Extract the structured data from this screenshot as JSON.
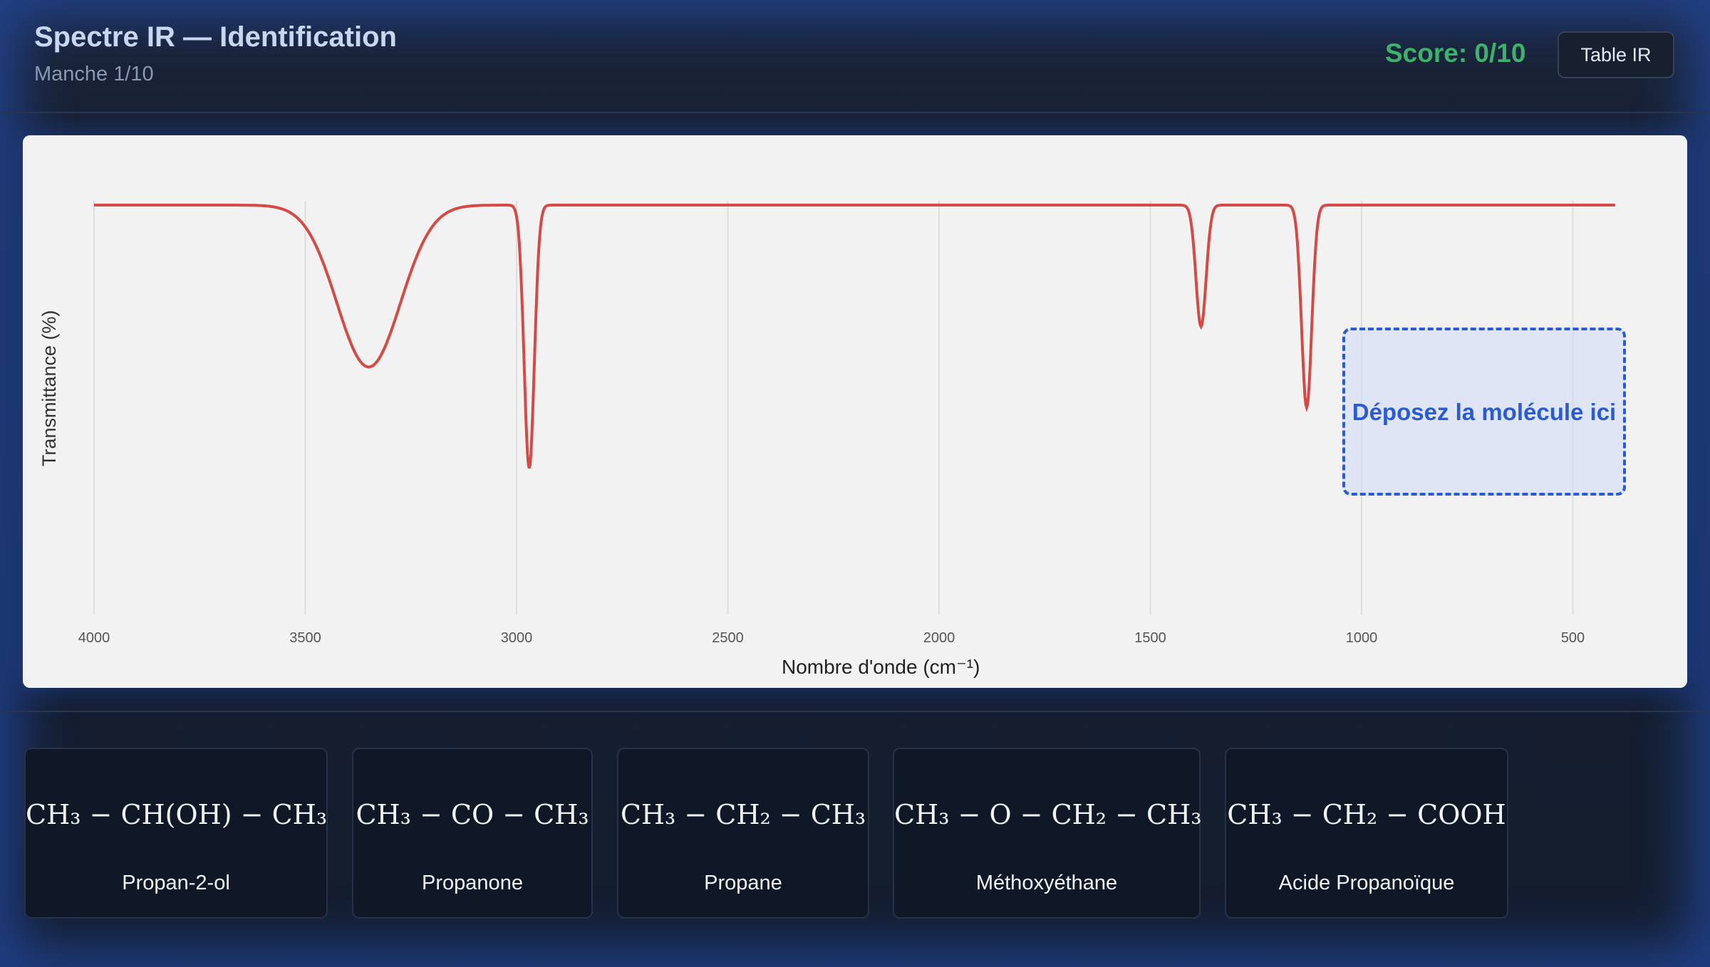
{
  "header": {
    "title": "Spectre IR — Identification",
    "round": "Manche 1/10",
    "score": "Score: 0/10",
    "table_button": "Table IR"
  },
  "drop_zone": {
    "label": "Déposez la molécule ici"
  },
  "chart_data": {
    "type": "line",
    "xlabel": "Nombre d'onde (cm⁻¹)",
    "ylabel": "Transmittance (%)",
    "x_ticks": [
      "4000",
      "3500",
      "3000",
      "2500",
      "2000",
      "1500",
      "1000",
      "500"
    ],
    "xlim": [
      4000,
      400
    ],
    "x_reversed": true,
    "ylim": [
      0,
      100
    ],
    "grid": true,
    "baseline_transmittance": 95,
    "peaks": [
      {
        "x": 3350,
        "min_transmittance": 55,
        "width": "broad"
      },
      {
        "x": 2970,
        "min_transmittance": 30,
        "width": "sharp"
      },
      {
        "x": 1380,
        "min_transmittance": 65,
        "width": "sharp"
      },
      {
        "x": 1130,
        "min_transmittance": 45,
        "width": "sharp"
      }
    ],
    "line_color": "#d64a45"
  },
  "molecules": [
    {
      "formula": "CH₃ − CH(OH) − CH₃",
      "name": "Propan-2-ol"
    },
    {
      "formula": "CH₃ − CO − CH₃",
      "name": "Propanone"
    },
    {
      "formula": "CH₃ − CH₂ − CH₃",
      "name": "Propane"
    },
    {
      "formula": "CH₃ − O − CH₂ − CH₃",
      "name": "Méthoxyéthane"
    },
    {
      "formula": "CH₃ − CH₂ − COOH",
      "name": "Acide Propanoïque"
    }
  ]
}
